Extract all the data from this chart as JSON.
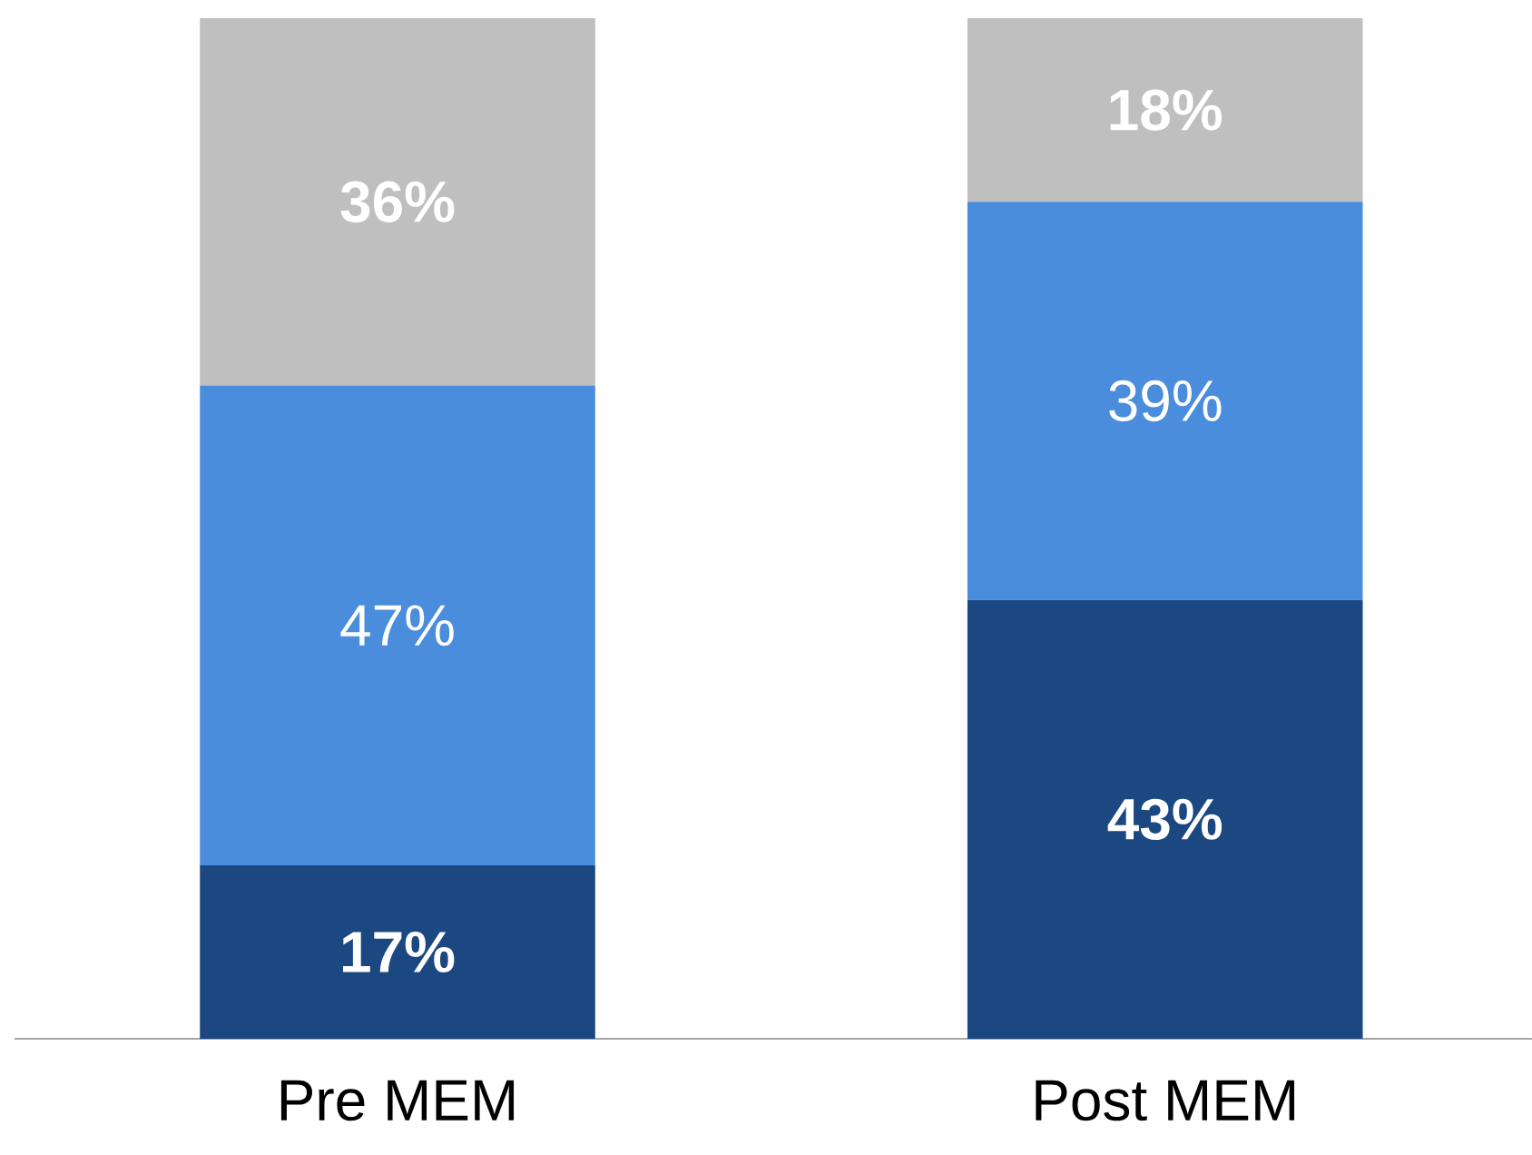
{
  "chart_data": {
    "type": "bar",
    "stacked": true,
    "categories": [
      "Pre MEM",
      "Post MEM"
    ],
    "series": [
      {
        "color": "#1b4880",
        "values": [
          17,
          43
        ],
        "value_labels": [
          "17%",
          "43%"
        ]
      },
      {
        "color": "#4a8ddc",
        "values": [
          47,
          39
        ],
        "value_labels": [
          "47%",
          "39%"
        ]
      },
      {
        "color": "#bfbfbf",
        "values": [
          36,
          18
        ],
        "value_labels": [
          "36%",
          "18%"
        ]
      }
    ]
  }
}
